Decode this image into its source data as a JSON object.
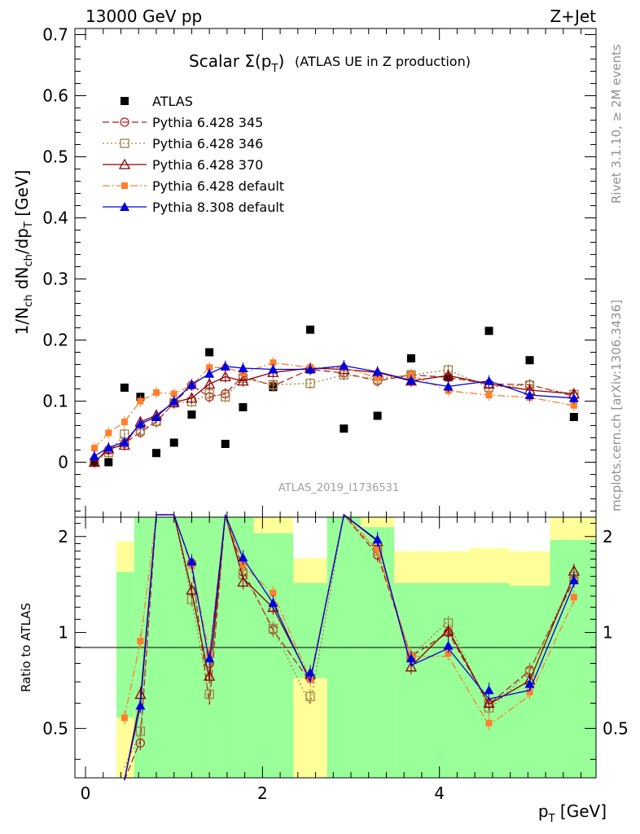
{
  "header": {
    "energy_label": "13000 GeV pp",
    "process_label": "Z+Jet"
  },
  "side_labels": {
    "rivet": "Rivet 3.1.10, ≥ 2M events",
    "mcplots": "mcplots.cern.ch [arXiv:1306.3436]"
  },
  "analysis_id": "ATLAS_2019_I1736531",
  "chart_data": [
    {
      "type": "scatter",
      "title": "Scalar Σ(p_T) (ATLAS UE in Z production)",
      "title_parts": {
        "main": "Scalar Σ(p",
        "sub": "T",
        "close": ")",
        "tail": "(ATLAS UE in Z production)"
      },
      "ylabel_parts": {
        "a": "1/N",
        "b": "ch",
        "c": " dN",
        "d": "ch",
        "e": "/dp",
        "f": "T",
        "g": " [GeV]"
      },
      "ylim": [
        -0.09,
        0.71
      ],
      "xlim": [
        -0.12,
        5.77
      ],
      "yticks": [
        0,
        0.1,
        0.2,
        0.3,
        0.4,
        0.5,
        0.6,
        0.7
      ],
      "ytick_labels": [
        "0",
        "0.1",
        "0.2",
        "0.3",
        "0.4",
        "0.5",
        "0.6",
        "0.7"
      ],
      "legend_position": "top-left",
      "x": [
        0.1,
        0.26,
        0.44,
        0.62,
        0.8,
        1.0,
        1.2,
        1.4,
        1.58,
        1.78,
        2.12,
        2.54,
        2.92,
        3.3,
        3.68,
        4.1,
        4.56,
        5.02,
        5.52
      ],
      "series": [
        {
          "name": "ATLAS",
          "style": "data",
          "color": "#000000",
          "values": [
            0.0,
            0.0,
            0.122,
            0.107,
            0.015,
            0.032,
            0.078,
            0.18,
            0.03,
            0.09,
            0.123,
            0.217,
            0.055,
            0.076,
            0.17,
            0.139,
            0.215,
            0.167,
            0.074
          ]
        },
        {
          "name": "Pythia 6.428 345",
          "style": "circle-open",
          "dash": "8,4",
          "color": "#b22222",
          "values": [
            0.0,
            0.02,
            0.031,
            0.049,
            0.066,
            0.097,
            0.126,
            0.107,
            0.112,
            0.141,
            0.125,
            0.152,
            0.146,
            0.133,
            0.143,
            0.139,
            0.128,
            0.127,
            0.108
          ]
        },
        {
          "name": "Pythia 6.428 346",
          "style": "square-open",
          "dash": "2,3",
          "color": "#a08040",
          "values": [
            0.0,
            0.016,
            0.046,
            0.052,
            0.067,
            0.097,
            0.099,
            0.112,
            0.107,
            0.137,
            0.127,
            0.129,
            0.143,
            0.136,
            0.143,
            0.151,
            0.123,
            0.126,
            0.111
          ]
        },
        {
          "name": "Pythia 6.428 370",
          "style": "triangle-open",
          "dash": "",
          "color": "#8b0000",
          "values": [
            0.0,
            0.022,
            0.028,
            0.066,
            0.077,
            0.098,
            0.105,
            0.128,
            0.14,
            0.133,
            0.147,
            0.154,
            0.152,
            0.147,
            0.133,
            0.142,
            0.128,
            0.118,
            0.112
          ]
        },
        {
          "name": "Pythia 6.428 default",
          "style": "square-filled",
          "dash": "9,3,2,3",
          "color": "#ff7f2a",
          "values": [
            0.023,
            0.048,
            0.066,
            0.1,
            0.114,
            0.112,
            0.126,
            0.155,
            0.155,
            0.146,
            0.163,
            0.155,
            0.155,
            0.138,
            0.143,
            0.117,
            0.11,
            0.106,
            0.093
          ]
        },
        {
          "name": "Pythia 8.308 default",
          "style": "triangle-filled",
          "dash": "",
          "color": "#0000dd",
          "values": [
            0.01,
            0.024,
            0.033,
            0.063,
            0.074,
            0.1,
            0.127,
            0.145,
            0.157,
            0.154,
            0.152,
            0.152,
            0.158,
            0.148,
            0.134,
            0.124,
            0.133,
            0.11,
            0.105
          ]
        }
      ]
    },
    {
      "type": "line",
      "ylabel": "Ratio to ATLAS",
      "xlabel": "p_T [GeV]",
      "xlabel_parts": {
        "main": "p",
        "sub": "T",
        "tail": " [GeV]"
      },
      "ylim": [
        0.35,
        2.3
      ],
      "yticks": [
        0.5,
        1,
        2
      ],
      "ytick_labels": [
        "0.5",
        "1",
        "2"
      ],
      "xticks": [
        0,
        2,
        4
      ],
      "xtick_labels": [
        "0",
        "2",
        "4"
      ],
      "x": [
        0.1,
        0.26,
        0.44,
        0.62,
        0.8,
        1.0,
        1.2,
        1.4,
        1.58,
        1.78,
        2.12,
        2.54,
        2.92,
        3.3,
        3.68,
        4.1,
        4.56,
        5.02,
        5.52
      ],
      "bins": [
        {
          "lo": 0.0,
          "hi": 0.35,
          "yellow": [
            0.0,
            0.0
          ],
          "green": [
            0.0,
            0.0
          ]
        },
        {
          "lo": 0.35,
          "hi": 0.55,
          "yellow": [
            0.0,
            1.93
          ],
          "green": [
            0.54,
            1.55
          ]
        },
        {
          "lo": 0.55,
          "hi": 0.7,
          "yellow": [
            0.0,
            2.3
          ],
          "green": [
            0.0,
            2.3
          ]
        },
        {
          "lo": 0.7,
          "hi": 1.1,
          "yellow": [
            0.0,
            2.3
          ],
          "green": [
            0.0,
            2.3
          ]
        },
        {
          "lo": 1.1,
          "hi": 1.3,
          "yellow": [
            0.0,
            2.3
          ],
          "green": [
            0.0,
            2.3
          ]
        },
        {
          "lo": 1.3,
          "hi": 1.5,
          "yellow": [
            0.0,
            2.3
          ],
          "green": [
            0.0,
            2.3
          ]
        },
        {
          "lo": 1.5,
          "hi": 1.65,
          "yellow": [
            0.0,
            2.3
          ],
          "green": [
            0.0,
            2.3
          ]
        },
        {
          "lo": 1.65,
          "hi": 1.9,
          "yellow": [
            0.0,
            2.3
          ],
          "green": [
            0.0,
            2.3
          ]
        },
        {
          "lo": 1.9,
          "hi": 2.35,
          "yellow": [
            0.0,
            2.3
          ],
          "green": [
            0.0,
            2.05
          ]
        },
        {
          "lo": 2.35,
          "hi": 2.73,
          "yellow": [
            0.0,
            1.71
          ],
          "green": [
            0.72,
            1.43
          ]
        },
        {
          "lo": 2.73,
          "hi": 3.11,
          "yellow": [
            0.0,
            2.3
          ],
          "green": [
            0.0,
            2.3
          ]
        },
        {
          "lo": 3.11,
          "hi": 3.49,
          "yellow": [
            0.0,
            2.3
          ],
          "green": [
            0.0,
            2.14
          ]
        },
        {
          "lo": 3.49,
          "hi": 3.87,
          "yellow": [
            0.69,
            1.8
          ],
          "green": [
            0.0,
            1.43
          ]
        },
        {
          "lo": 3.87,
          "hi": 4.33,
          "yellow": [
            0.68,
            1.8
          ],
          "green": [
            0.0,
            1.43
          ]
        },
        {
          "lo": 4.33,
          "hi": 4.79,
          "yellow": [
            0.67,
            1.84
          ],
          "green": [
            0.0,
            1.43
          ]
        },
        {
          "lo": 4.79,
          "hi": 5.25,
          "yellow": [
            0.7,
            1.8
          ],
          "green": [
            0.0,
            1.4
          ]
        },
        {
          "lo": 5.25,
          "hi": 5.77,
          "yellow": [
            0.0,
            2.3
          ],
          "green": [
            0.0,
            1.95
          ]
        }
      ],
      "series": [
        {
          "name": "Pythia 6.428 345",
          "values": [
            null,
            null,
            null,
            0.45,
            null,
            null,
            1.65,
            0.8,
            null,
            1.55,
            1.02,
            0.72,
            null,
            1.75,
            0.84,
            1.0,
            0.6,
            0.76,
            1.46
          ]
        },
        {
          "name": "Pythia 6.428 346",
          "values": [
            null,
            null,
            null,
            0.49,
            null,
            null,
            1.27,
            0.64,
            null,
            1.52,
            1.03,
            0.63,
            null,
            1.8,
            0.84,
            1.07,
            0.58,
            0.75,
            1.5
          ]
        },
        {
          "name": "Pythia 6.428 370",
          "values": [
            null,
            null,
            null,
            0.64,
            null,
            null,
            1.36,
            0.73,
            null,
            1.44,
            1.2,
            0.74,
            null,
            1.93,
            0.78,
            1.01,
            0.6,
            0.71,
            1.56
          ]
        },
        {
          "name": "Pythia 6.428 default",
          "values": [
            null,
            null,
            0.54,
            0.94,
            null,
            null,
            1.62,
            0.86,
            null,
            1.63,
            1.33,
            0.71,
            null,
            1.82,
            0.85,
            0.86,
            0.52,
            0.65,
            1.29
          ]
        },
        {
          "name": "Pythia 8.308 default",
          "values": [
            null,
            null,
            null,
            0.59,
            null,
            null,
            1.67,
            0.83,
            null,
            1.72,
            1.24,
            0.75,
            null,
            1.96,
            0.83,
            0.91,
            0.66,
            0.69,
            1.46
          ]
        }
      ]
    }
  ]
}
